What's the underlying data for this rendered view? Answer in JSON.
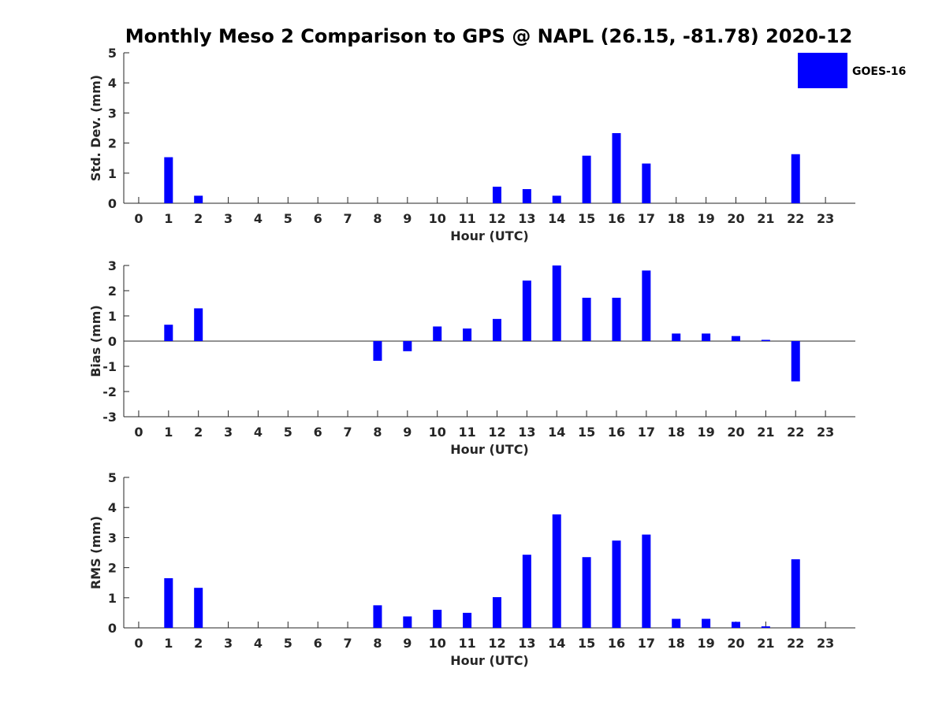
{
  "chart_data": {
    "type": "bar",
    "title": "Monthly Meso 2 Comparison to GPS @ NAPL (26.15, -81.78) 2020-12",
    "legend": {
      "entries": [
        "GOES-16"
      ],
      "placement": "top-right"
    },
    "color": "#0000ff",
    "categories": [
      "0",
      "1",
      "2",
      "3",
      "4",
      "5",
      "6",
      "7",
      "8",
      "9",
      "10",
      "11",
      "12",
      "13",
      "14",
      "15",
      "16",
      "17",
      "18",
      "19",
      "20",
      "21",
      "22",
      "23"
    ],
    "panels": [
      {
        "ylabel": "Std. Dev. (mm)",
        "xlabel": "Hour (UTC)",
        "ylim": [
          0,
          5
        ],
        "yticks": [
          "0",
          "1",
          "2",
          "3",
          "4",
          "5"
        ],
        "series": [
          {
            "name": "GOES-16",
            "values": [
              null,
              1.53,
              0.25,
              null,
              null,
              null,
              null,
              null,
              null,
              null,
              null,
              null,
              0.55,
              0.47,
              0.25,
              1.58,
              2.33,
              1.32,
              null,
              null,
              null,
              null,
              1.63,
              null
            ]
          }
        ]
      },
      {
        "ylabel": "Bias (mm)",
        "xlabel": "Hour (UTC)",
        "ylim": [
          -3,
          3
        ],
        "yticks": [
          "-3",
          "-2",
          "-1",
          "0",
          "1",
          "2",
          "3"
        ],
        "zero_line": true,
        "series": [
          {
            "name": "GOES-16",
            "values": [
              null,
              0.65,
              1.3,
              null,
              null,
              null,
              null,
              null,
              -0.78,
              -0.4,
              0.58,
              0.5,
              0.88,
              2.4,
              3.0,
              1.72,
              1.72,
              2.8,
              0.3,
              0.3,
              0.2,
              0.05,
              -1.6,
              null
            ]
          }
        ]
      },
      {
        "ylabel": "RMS (mm)",
        "xlabel": "Hour (UTC)",
        "ylim": [
          0,
          5
        ],
        "yticks": [
          "0",
          "1",
          "2",
          "3",
          "4",
          "5"
        ],
        "series": [
          {
            "name": "GOES-16",
            "values": [
              null,
              1.65,
              1.33,
              null,
              null,
              null,
              null,
              null,
              0.75,
              0.38,
              0.6,
              0.5,
              1.02,
              2.43,
              3.77,
              2.35,
              2.9,
              3.1,
              0.3,
              0.3,
              0.2,
              0.05,
              2.28,
              null
            ]
          }
        ]
      }
    ]
  }
}
